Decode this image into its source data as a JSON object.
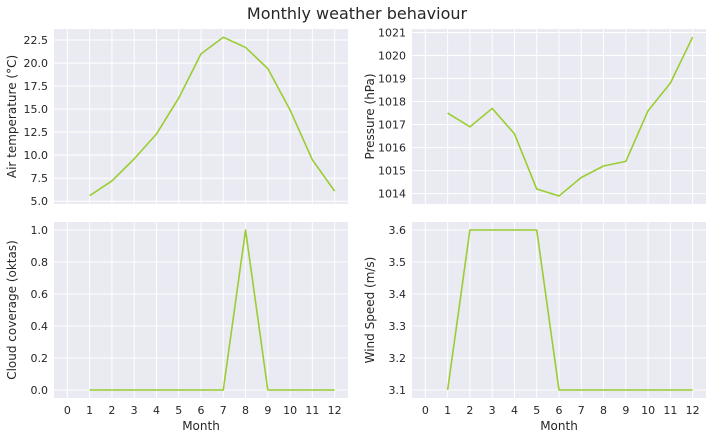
{
  "figure": {
    "title": "Monthly weather behaviour"
  },
  "colors": {
    "line": "#9acd32",
    "panel_bg": "#eaeaf2",
    "grid": "#ffffff",
    "text": "#262626"
  },
  "chart_data": [
    {
      "type": "line",
      "xlabel": "",
      "ylabel": "Air temperature (°C)",
      "x": [
        1,
        2,
        3,
        4,
        5,
        6,
        7,
        8,
        9,
        10,
        11,
        12
      ],
      "values": [
        5.6,
        7.2,
        9.6,
        12.3,
        16.2,
        21.0,
        22.8,
        21.7,
        19.4,
        14.9,
        9.5,
        6.1
      ],
      "yticks": [
        5.0,
        7.5,
        10.0,
        12.5,
        15.0,
        17.5,
        20.0,
        22.5
      ],
      "ytick_labels": [
        "5.0",
        "7.5",
        "10.0",
        "12.5",
        "15.0",
        "17.5",
        "20.0",
        "22.5"
      ],
      "ylim": [
        4.7,
        23.7
      ],
      "xticks_shown": false,
      "grid": true
    },
    {
      "type": "line",
      "xlabel": "",
      "ylabel": "Pressure (hPa)",
      "x": [
        1,
        2,
        3,
        4,
        5,
        6,
        7,
        8,
        9,
        10,
        11,
        12
      ],
      "values": [
        1017.5,
        1016.9,
        1017.7,
        1016.6,
        1014.2,
        1013.9,
        1014.7,
        1015.2,
        1015.4,
        1017.6,
        1018.8,
        1020.8
      ],
      "yticks": [
        1014,
        1015,
        1016,
        1017,
        1018,
        1019,
        1020,
        1021
      ],
      "ytick_labels": [
        "1014",
        "1015",
        "1016",
        "1017",
        "1018",
        "1019",
        "1020",
        "1021"
      ],
      "ylim": [
        1013.55,
        1021.15
      ],
      "xticks_shown": false,
      "grid": true
    },
    {
      "type": "line",
      "xlabel": "Month",
      "ylabel": "Cloud coverage (oktas)",
      "x": [
        1,
        2,
        3,
        4,
        5,
        6,
        7,
        8,
        9,
        10,
        11,
        12
      ],
      "values": [
        0,
        0,
        0,
        0,
        0,
        0,
        0,
        1,
        0,
        0,
        0,
        0
      ],
      "yticks": [
        0.0,
        0.2,
        0.4,
        0.6,
        0.8,
        1.0
      ],
      "ytick_labels": [
        "0.0",
        "0.2",
        "0.4",
        "0.6",
        "0.8",
        "1.0"
      ],
      "ylim": [
        -0.05,
        1.05
      ],
      "xticks": [
        0,
        1,
        2,
        3,
        4,
        5,
        6,
        7,
        8,
        9,
        10,
        11,
        12
      ],
      "xtick_labels": [
        "0",
        "1",
        "2",
        "3",
        "4",
        "5",
        "6",
        "7",
        "8",
        "9",
        "10",
        "11",
        "12"
      ],
      "xticks_shown": true,
      "grid": true
    },
    {
      "type": "line",
      "xlabel": "Month",
      "ylabel": "Wind Speed (m/s)",
      "x": [
        1,
        2,
        3,
        4,
        5,
        6,
        7,
        8,
        9,
        10,
        11,
        12
      ],
      "values": [
        3.1,
        3.6,
        3.6,
        3.6,
        3.6,
        3.1,
        3.1,
        3.1,
        3.1,
        3.1,
        3.1,
        3.1
      ],
      "yticks": [
        3.1,
        3.2,
        3.3,
        3.4,
        3.5,
        3.6
      ],
      "ytick_labels": [
        "3.1",
        "3.2",
        "3.3",
        "3.4",
        "3.5",
        "3.6"
      ],
      "ylim": [
        3.075,
        3.625
      ],
      "xticks": [
        0,
        1,
        2,
        3,
        4,
        5,
        6,
        7,
        8,
        9,
        10,
        11,
        12
      ],
      "xtick_labels": [
        "0",
        "1",
        "2",
        "3",
        "4",
        "5",
        "6",
        "7",
        "8",
        "9",
        "10",
        "11",
        "12"
      ],
      "xticks_shown": true,
      "grid": true
    }
  ]
}
